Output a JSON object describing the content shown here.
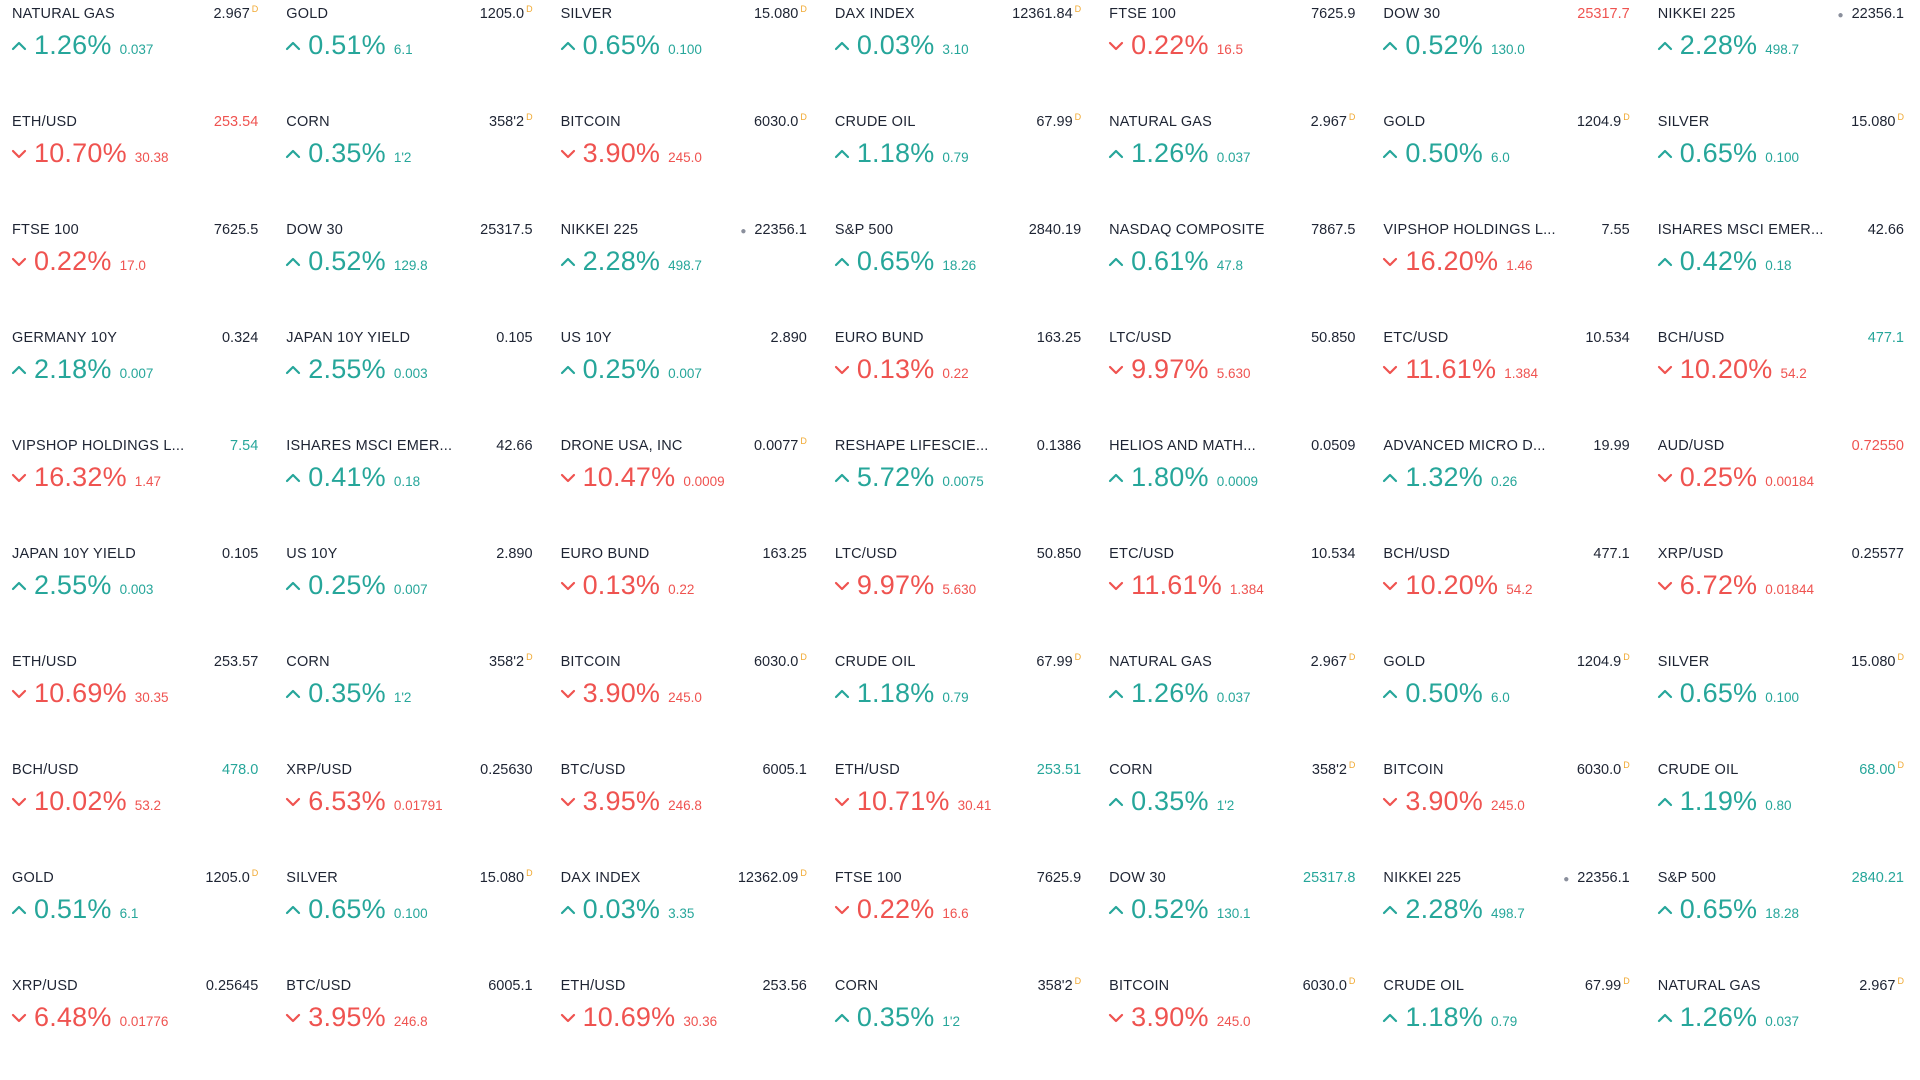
{
  "colors": {
    "up": "#26a69a",
    "down": "#ef5350",
    "text": "#1e2433",
    "flag": "#f0a830",
    "background": "#ffffff"
  },
  "icons": {
    "up": "chevron-up-icon",
    "down": "chevron-down-icon"
  },
  "tickers": [
    {
      "symbol": "NATURAL GAS",
      "price": "2.967",
      "price_color": "",
      "flag": "D",
      "dot": false,
      "direction": "up",
      "percent": "1.26%",
      "change": "0.037"
    },
    {
      "symbol": "GOLD",
      "price": "1205.0",
      "price_color": "",
      "flag": "D",
      "dot": false,
      "direction": "up",
      "percent": "0.51%",
      "change": "6.1"
    },
    {
      "symbol": "SILVER",
      "price": "15.080",
      "price_color": "",
      "flag": "D",
      "dot": false,
      "direction": "up",
      "percent": "0.65%",
      "change": "0.100"
    },
    {
      "symbol": "DAX INDEX",
      "price": "12361.84",
      "price_color": "",
      "flag": "D",
      "dot": false,
      "direction": "up",
      "percent": "0.03%",
      "change": "3.10"
    },
    {
      "symbol": "FTSE 100",
      "price": "7625.9",
      "price_color": "",
      "flag": "",
      "dot": false,
      "direction": "down",
      "percent": "0.22%",
      "change": "16.5"
    },
    {
      "symbol": "DOW 30",
      "price": "25317.7",
      "price_color": "down",
      "flag": "",
      "dot": false,
      "direction": "up",
      "percent": "0.52%",
      "change": "130.0"
    },
    {
      "symbol": "NIKKEI 225",
      "price": "22356.1",
      "price_color": "",
      "flag": "",
      "dot": true,
      "direction": "up",
      "percent": "2.28%",
      "change": "498.7"
    },
    {
      "symbol": "ETH/USD",
      "price": "253.54",
      "price_color": "down",
      "flag": "",
      "dot": false,
      "direction": "down",
      "percent": "10.70%",
      "change": "30.38"
    },
    {
      "symbol": "CORN",
      "price": "358'2",
      "price_color": "",
      "flag": "D",
      "dot": false,
      "direction": "up",
      "percent": "0.35%",
      "change": "1'2"
    },
    {
      "symbol": "BITCOIN",
      "price": "6030.0",
      "price_color": "",
      "flag": "D",
      "dot": false,
      "direction": "down",
      "percent": "3.90%",
      "change": "245.0"
    },
    {
      "symbol": "CRUDE OIL",
      "price": "67.99",
      "price_color": "",
      "flag": "D",
      "dot": false,
      "direction": "up",
      "percent": "1.18%",
      "change": "0.79"
    },
    {
      "symbol": "NATURAL GAS",
      "price": "2.967",
      "price_color": "",
      "flag": "D",
      "dot": false,
      "direction": "up",
      "percent": "1.26%",
      "change": "0.037"
    },
    {
      "symbol": "GOLD",
      "price": "1204.9",
      "price_color": "",
      "flag": "D",
      "dot": false,
      "direction": "up",
      "percent": "0.50%",
      "change": "6.0"
    },
    {
      "symbol": "SILVER",
      "price": "15.080",
      "price_color": "",
      "flag": "D",
      "dot": false,
      "direction": "up",
      "percent": "0.65%",
      "change": "0.100"
    },
    {
      "symbol": "FTSE 100",
      "price": "7625.5",
      "price_color": "",
      "flag": "",
      "dot": false,
      "direction": "down",
      "percent": "0.22%",
      "change": "17.0"
    },
    {
      "symbol": "DOW 30",
      "price": "25317.5",
      "price_color": "",
      "flag": "",
      "dot": false,
      "direction": "up",
      "percent": "0.52%",
      "change": "129.8"
    },
    {
      "symbol": "NIKKEI 225",
      "price": "22356.1",
      "price_color": "",
      "flag": "",
      "dot": true,
      "direction": "up",
      "percent": "2.28%",
      "change": "498.7"
    },
    {
      "symbol": "S&P 500",
      "price": "2840.19",
      "price_color": "",
      "flag": "",
      "dot": false,
      "direction": "up",
      "percent": "0.65%",
      "change": "18.26"
    },
    {
      "symbol": "NASDAQ COMPOSITE",
      "price": "7867.5",
      "price_color": "",
      "flag": "",
      "dot": false,
      "direction": "up",
      "percent": "0.61%",
      "change": "47.8"
    },
    {
      "symbol": "VIPSHOP HOLDINGS L...",
      "price": "7.55",
      "price_color": "",
      "flag": "",
      "dot": false,
      "direction": "down",
      "percent": "16.20%",
      "change": "1.46"
    },
    {
      "symbol": "ISHARES MSCI EMER...",
      "price": "42.66",
      "price_color": "",
      "flag": "",
      "dot": false,
      "direction": "up",
      "percent": "0.42%",
      "change": "0.18"
    },
    {
      "symbol": "GERMANY 10Y",
      "price": "0.324",
      "price_color": "",
      "flag": "",
      "dot": false,
      "direction": "up",
      "percent": "2.18%",
      "change": "0.007"
    },
    {
      "symbol": "JAPAN 10Y YIELD",
      "price": "0.105",
      "price_color": "",
      "flag": "",
      "dot": false,
      "direction": "up",
      "percent": "2.55%",
      "change": "0.003"
    },
    {
      "symbol": "US 10Y",
      "price": "2.890",
      "price_color": "",
      "flag": "",
      "dot": false,
      "direction": "up",
      "percent": "0.25%",
      "change": "0.007"
    },
    {
      "symbol": "EURO BUND",
      "price": "163.25",
      "price_color": "",
      "flag": "",
      "dot": false,
      "direction": "down",
      "percent": "0.13%",
      "change": "0.22"
    },
    {
      "symbol": "LTC/USD",
      "price": "50.850",
      "price_color": "",
      "flag": "",
      "dot": false,
      "direction": "down",
      "percent": "9.97%",
      "change": "5.630"
    },
    {
      "symbol": "ETC/USD",
      "price": "10.534",
      "price_color": "",
      "flag": "",
      "dot": false,
      "direction": "down",
      "percent": "11.61%",
      "change": "1.384"
    },
    {
      "symbol": "BCH/USD",
      "price": "477.1",
      "price_color": "up",
      "flag": "",
      "dot": false,
      "direction": "down",
      "percent": "10.20%",
      "change": "54.2"
    },
    {
      "symbol": "VIPSHOP HOLDINGS L...",
      "price": "7.54",
      "price_color": "up",
      "flag": "",
      "dot": false,
      "direction": "down",
      "percent": "16.32%",
      "change": "1.47"
    },
    {
      "symbol": "ISHARES MSCI EMER...",
      "price": "42.66",
      "price_color": "",
      "flag": "",
      "dot": false,
      "direction": "up",
      "percent": "0.41%",
      "change": "0.18"
    },
    {
      "symbol": "DRONE USA, INC",
      "price": "0.0077",
      "price_color": "",
      "flag": "D",
      "dot": false,
      "direction": "down",
      "percent": "10.47%",
      "change": "0.0009"
    },
    {
      "symbol": "RESHAPE LIFESCIE...",
      "price": "0.1386",
      "price_color": "",
      "flag": "",
      "dot": false,
      "direction": "up",
      "percent": "5.72%",
      "change": "0.0075"
    },
    {
      "symbol": "HELIOS AND MATH...",
      "price": "0.0509",
      "price_color": "",
      "flag": "",
      "dot": false,
      "direction": "up",
      "percent": "1.80%",
      "change": "0.0009"
    },
    {
      "symbol": "ADVANCED MICRO D...",
      "price": "19.99",
      "price_color": "",
      "flag": "",
      "dot": false,
      "direction": "up",
      "percent": "1.32%",
      "change": "0.26"
    },
    {
      "symbol": "AUD/USD",
      "price": "0.72550",
      "price_color": "down",
      "flag": "",
      "dot": false,
      "direction": "down",
      "percent": "0.25%",
      "change": "0.00184"
    },
    {
      "symbol": "JAPAN 10Y YIELD",
      "price": "0.105",
      "price_color": "",
      "flag": "",
      "dot": false,
      "direction": "up",
      "percent": "2.55%",
      "change": "0.003"
    },
    {
      "symbol": "US 10Y",
      "price": "2.890",
      "price_color": "",
      "flag": "",
      "dot": false,
      "direction": "up",
      "percent": "0.25%",
      "change": "0.007"
    },
    {
      "symbol": "EURO BUND",
      "price": "163.25",
      "price_color": "",
      "flag": "",
      "dot": false,
      "direction": "down",
      "percent": "0.13%",
      "change": "0.22"
    },
    {
      "symbol": "LTC/USD",
      "price": "50.850",
      "price_color": "",
      "flag": "",
      "dot": false,
      "direction": "down",
      "percent": "9.97%",
      "change": "5.630"
    },
    {
      "symbol": "ETC/USD",
      "price": "10.534",
      "price_color": "",
      "flag": "",
      "dot": false,
      "direction": "down",
      "percent": "11.61%",
      "change": "1.384"
    },
    {
      "symbol": "BCH/USD",
      "price": "477.1",
      "price_color": "",
      "flag": "",
      "dot": false,
      "direction": "down",
      "percent": "10.20%",
      "change": "54.2"
    },
    {
      "symbol": "XRP/USD",
      "price": "0.25577",
      "price_color": "",
      "flag": "",
      "dot": false,
      "direction": "down",
      "percent": "6.72%",
      "change": "0.01844"
    },
    {
      "symbol": "ETH/USD",
      "price": "253.57",
      "price_color": "",
      "flag": "",
      "dot": false,
      "direction": "down",
      "percent": "10.69%",
      "change": "30.35"
    },
    {
      "symbol": "CORN",
      "price": "358'2",
      "price_color": "",
      "flag": "D",
      "dot": false,
      "direction": "up",
      "percent": "0.35%",
      "change": "1'2"
    },
    {
      "symbol": "BITCOIN",
      "price": "6030.0",
      "price_color": "",
      "flag": "D",
      "dot": false,
      "direction": "down",
      "percent": "3.90%",
      "change": "245.0"
    },
    {
      "symbol": "CRUDE OIL",
      "price": "67.99",
      "price_color": "",
      "flag": "D",
      "dot": false,
      "direction": "up",
      "percent": "1.18%",
      "change": "0.79"
    },
    {
      "symbol": "NATURAL GAS",
      "price": "2.967",
      "price_color": "",
      "flag": "D",
      "dot": false,
      "direction": "up",
      "percent": "1.26%",
      "change": "0.037"
    },
    {
      "symbol": "GOLD",
      "price": "1204.9",
      "price_color": "",
      "flag": "D",
      "dot": false,
      "direction": "up",
      "percent": "0.50%",
      "change": "6.0"
    },
    {
      "symbol": "SILVER",
      "price": "15.080",
      "price_color": "",
      "flag": "D",
      "dot": false,
      "direction": "up",
      "percent": "0.65%",
      "change": "0.100"
    },
    {
      "symbol": "BCH/USD",
      "price": "478.0",
      "price_color": "up",
      "flag": "",
      "dot": false,
      "direction": "down",
      "percent": "10.02%",
      "change": "53.2"
    },
    {
      "symbol": "XRP/USD",
      "price": "0.25630",
      "price_color": "",
      "flag": "",
      "dot": false,
      "direction": "down",
      "percent": "6.53%",
      "change": "0.01791"
    },
    {
      "symbol": "BTC/USD",
      "price": "6005.1",
      "price_color": "",
      "flag": "",
      "dot": false,
      "direction": "down",
      "percent": "3.95%",
      "change": "246.8"
    },
    {
      "symbol": "ETH/USD",
      "price": "253.51",
      "price_color": "up",
      "flag": "",
      "dot": false,
      "direction": "down",
      "percent": "10.71%",
      "change": "30.41"
    },
    {
      "symbol": "CORN",
      "price": "358'2",
      "price_color": "",
      "flag": "D",
      "dot": false,
      "direction": "up",
      "percent": "0.35%",
      "change": "1'2"
    },
    {
      "symbol": "BITCOIN",
      "price": "6030.0",
      "price_color": "",
      "flag": "D",
      "dot": false,
      "direction": "down",
      "percent": "3.90%",
      "change": "245.0"
    },
    {
      "symbol": "CRUDE OIL",
      "price": "68.00",
      "price_color": "up",
      "flag": "D",
      "dot": false,
      "direction": "up",
      "percent": "1.19%",
      "change": "0.80"
    },
    {
      "symbol": "GOLD",
      "price": "1205.0",
      "price_color": "",
      "flag": "D",
      "dot": false,
      "direction": "up",
      "percent": "0.51%",
      "change": "6.1"
    },
    {
      "symbol": "SILVER",
      "price": "15.080",
      "price_color": "",
      "flag": "D",
      "dot": false,
      "direction": "up",
      "percent": "0.65%",
      "change": "0.100"
    },
    {
      "symbol": "DAX INDEX",
      "price": "12362.09",
      "price_color": "",
      "flag": "D",
      "dot": false,
      "direction": "up",
      "percent": "0.03%",
      "change": "3.35"
    },
    {
      "symbol": "FTSE 100",
      "price": "7625.9",
      "price_color": "",
      "flag": "",
      "dot": false,
      "direction": "down",
      "percent": "0.22%",
      "change": "16.6"
    },
    {
      "symbol": "DOW 30",
      "price": "25317.8",
      "price_color": "up",
      "flag": "",
      "dot": false,
      "direction": "up",
      "percent": "0.52%",
      "change": "130.1"
    },
    {
      "symbol": "NIKKEI 225",
      "price": "22356.1",
      "price_color": "",
      "flag": "",
      "dot": true,
      "direction": "up",
      "percent": "2.28%",
      "change": "498.7"
    },
    {
      "symbol": "S&P 500",
      "price": "2840.21",
      "price_color": "up",
      "flag": "",
      "dot": false,
      "direction": "up",
      "percent": "0.65%",
      "change": "18.28"
    },
    {
      "symbol": "XRP/USD",
      "price": "0.25645",
      "price_color": "",
      "flag": "",
      "dot": false,
      "direction": "down",
      "percent": "6.48%",
      "change": "0.01776"
    },
    {
      "symbol": "BTC/USD",
      "price": "6005.1",
      "price_color": "",
      "flag": "",
      "dot": false,
      "direction": "down",
      "percent": "3.95%",
      "change": "246.8"
    },
    {
      "symbol": "ETH/USD",
      "price": "253.56",
      "price_color": "",
      "flag": "",
      "dot": false,
      "direction": "down",
      "percent": "10.69%",
      "change": "30.36"
    },
    {
      "symbol": "CORN",
      "price": "358'2",
      "price_color": "",
      "flag": "D",
      "dot": false,
      "direction": "up",
      "percent": "0.35%",
      "change": "1'2"
    },
    {
      "symbol": "BITCOIN",
      "price": "6030.0",
      "price_color": "",
      "flag": "D",
      "dot": false,
      "direction": "down",
      "percent": "3.90%",
      "change": "245.0"
    },
    {
      "symbol": "CRUDE OIL",
      "price": "67.99",
      "price_color": "",
      "flag": "D",
      "dot": false,
      "direction": "up",
      "percent": "1.18%",
      "change": "0.79"
    },
    {
      "symbol": "NATURAL GAS",
      "price": "2.967",
      "price_color": "",
      "flag": "D",
      "dot": false,
      "direction": "up",
      "percent": "1.26%",
      "change": "0.037"
    }
  ]
}
